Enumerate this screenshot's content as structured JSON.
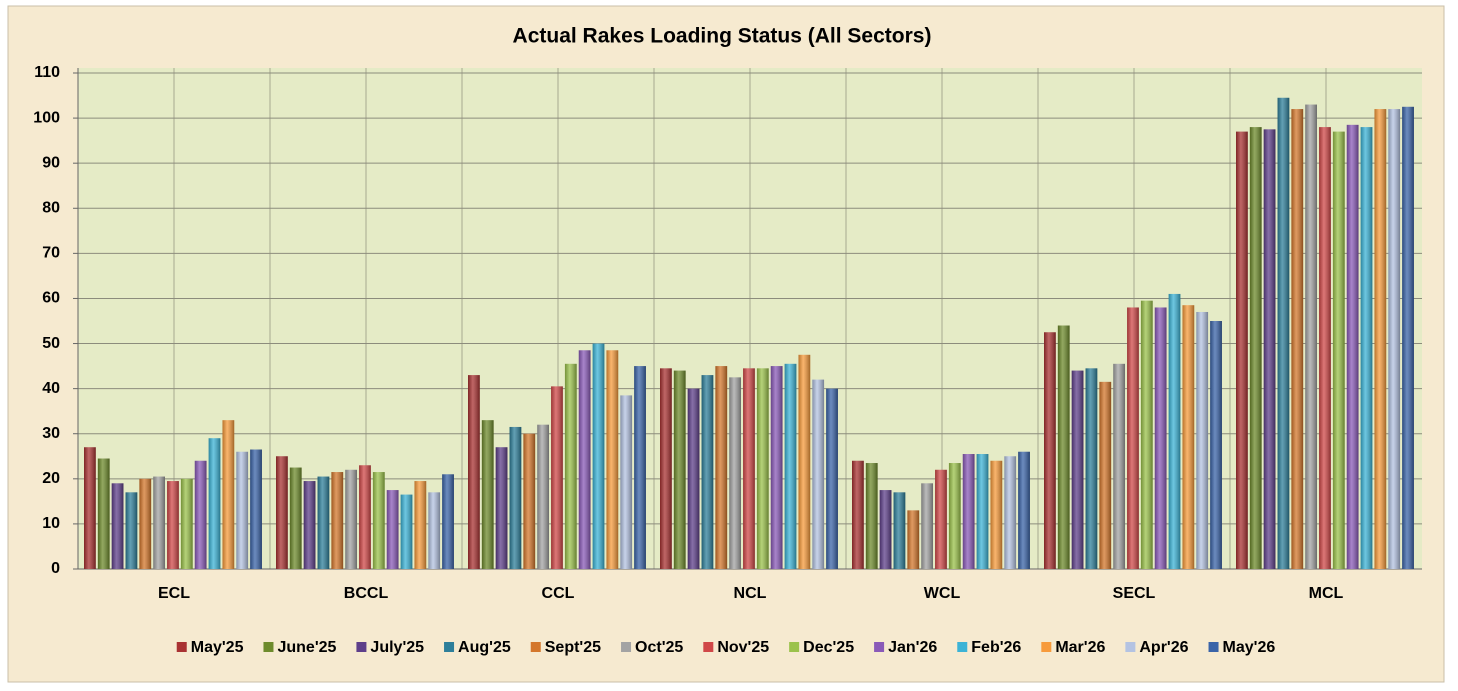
{
  "chart_data": {
    "type": "bar",
    "title": "Actual Rakes Loading Status (All Sectors)",
    "categories": [
      "ECL",
      "BCCL",
      "CCL",
      "NCL",
      "WCL",
      "SECL",
      "MCL"
    ],
    "series": [
      {
        "name": "May'25",
        "color": "#a93232",
        "values": [
          27,
          25,
          43,
          44.5,
          24,
          52.5,
          97
        ]
      },
      {
        "name": "June'25",
        "color": "#6e8b2c",
        "values": [
          24.5,
          22.5,
          33,
          44,
          23.5,
          54,
          98
        ]
      },
      {
        "name": "July'25",
        "color": "#5e3f8a",
        "values": [
          19,
          19.5,
          27,
          40,
          17.5,
          44,
          97.5
        ]
      },
      {
        "name": "Aug'25",
        "color": "#2e7f9a",
        "values": [
          17,
          20.5,
          31.5,
          43,
          17,
          44.5,
          104.5
        ]
      },
      {
        "name": "Sept'25",
        "color": "#d4772c",
        "values": [
          20,
          21.5,
          30,
          45,
          13,
          41.5,
          102
        ]
      },
      {
        "name": "Oct'25",
        "color": "#a3a3a3",
        "values": [
          20.5,
          22,
          32,
          42.5,
          19,
          45.5,
          103
        ]
      },
      {
        "name": "Nov'25",
        "color": "#d04848",
        "values": [
          19.5,
          23,
          40.5,
          44.5,
          22,
          58,
          98
        ]
      },
      {
        "name": "Dec'25",
        "color": "#9bc24b",
        "values": [
          20,
          21.5,
          45.5,
          44.5,
          23.5,
          59.5,
          97
        ]
      },
      {
        "name": "Jan'26",
        "color": "#8a5ab8",
        "values": [
          24,
          17.5,
          48.5,
          45,
          25.5,
          58,
          98.5
        ]
      },
      {
        "name": "Feb'26",
        "color": "#3cb3d6",
        "values": [
          29,
          16.5,
          50,
          45.5,
          25.5,
          61,
          98
        ]
      },
      {
        "name": "Mar'26",
        "color": "#f79b3c",
        "values": [
          33,
          19.5,
          48.5,
          47.5,
          24,
          58.5,
          102
        ]
      },
      {
        "name": "Apr'26",
        "color": "#b4c3e2",
        "values": [
          26,
          17,
          38.5,
          42,
          25,
          57,
          102
        ]
      },
      {
        "name": "May'26",
        "color": "#3a64a8",
        "values": [
          26.5,
          21,
          45,
          40,
          26,
          55,
          102.5
        ]
      }
    ],
    "ylim": [
      0,
      110
    ],
    "yticks": [
      0,
      10,
      20,
      30,
      40,
      50,
      60,
      70,
      80,
      90,
      100,
      110
    ],
    "grid": true,
    "legend": "bottom"
  }
}
